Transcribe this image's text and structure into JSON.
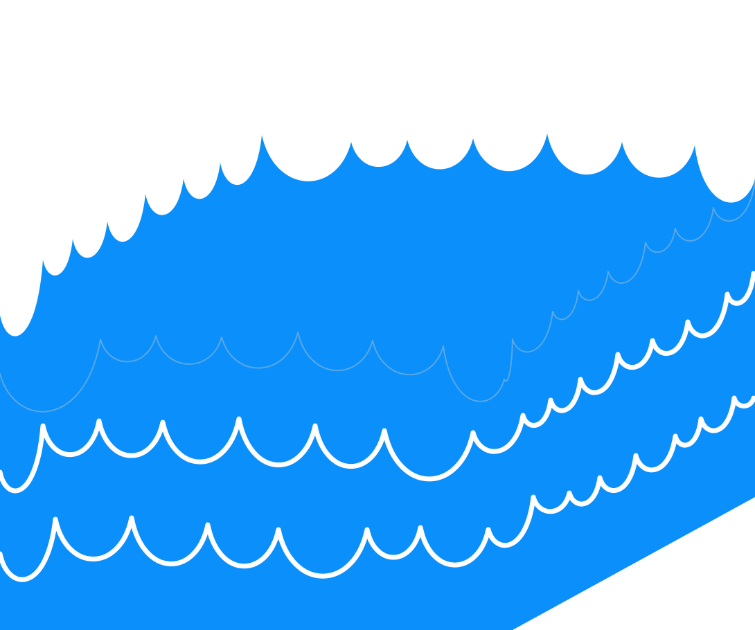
{
  "scene": {
    "description_icon": "ocean-waves-illustration",
    "colors": {
      "background": "#ffffff",
      "water": "#0a8ffb",
      "wave_line": "#ffffff",
      "faint_line": "#5aa8e6"
    }
  }
}
